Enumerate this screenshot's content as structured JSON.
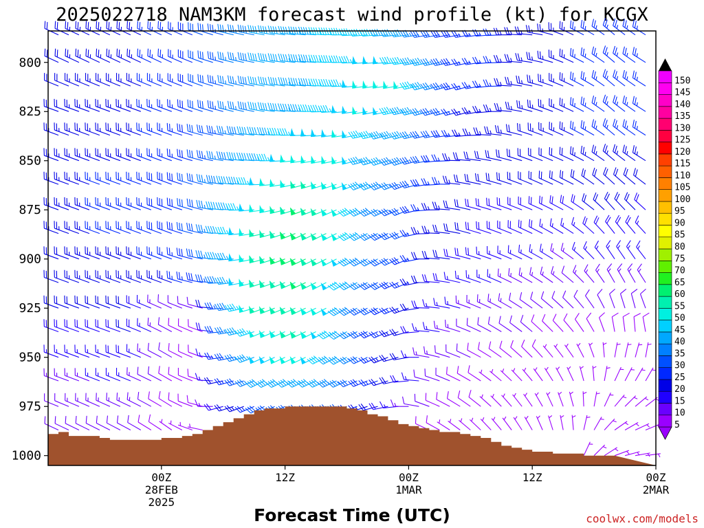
{
  "chart_data": {
    "type": "wind-barb-time-height",
    "title": "2025022718 NAM3KM forecast wind profile (kt) for KCGX",
    "xlabel": "Forecast Time (UTC)",
    "ylabel": "",
    "credit": "coolwx.com/models",
    "x_range_hours": [
      -5,
      54
    ],
    "y_range_hPa": [
      1005,
      784
    ],
    "y_ticks": [
      {
        "label": "800",
        "value": 800
      },
      {
        "label": "825",
        "value": 825
      },
      {
        "label": "850",
        "value": 850
      },
      {
        "label": "875",
        "value": 875
      },
      {
        "label": "900",
        "value": 900
      },
      {
        "label": "925",
        "value": 925
      },
      {
        "label": "950",
        "value": 950
      },
      {
        "label": "975",
        "value": 975
      },
      {
        "label": "1000",
        "value": 1000
      }
    ],
    "x_ticks": [
      {
        "hour": 6,
        "lines": [
          "00Z",
          "28FEB",
          "2025"
        ]
      },
      {
        "hour": 18,
        "lines": [
          "12Z"
        ]
      },
      {
        "hour": 30,
        "lines": [
          "00Z",
          "1MAR"
        ]
      },
      {
        "hour": 42,
        "lines": [
          "12Z"
        ]
      },
      {
        "hour": 54,
        "lines": [
          "00Z",
          "2MAR"
        ]
      }
    ],
    "time_step_hours": 1,
    "surface_pressure": {
      "hours": [
        -5,
        -4,
        -3,
        -2,
        -1,
        0,
        1,
        2,
        3,
        4,
        5,
        6,
        7,
        8,
        9,
        10,
        11,
        12,
        13,
        14,
        15,
        16,
        17,
        18,
        19,
        20,
        21,
        22,
        23,
        24,
        25,
        26,
        27,
        28,
        29,
        30,
        31,
        32,
        33,
        34,
        35,
        36,
        37,
        38,
        39,
        40,
        41,
        42,
        43,
        44,
        45,
        46,
        47,
        48,
        49
      ],
      "hPa": [
        989,
        988,
        990,
        990,
        990,
        991,
        992,
        992,
        992,
        992,
        992,
        991,
        991,
        990,
        989,
        987,
        985,
        983,
        981,
        979,
        977,
        976,
        976,
        975,
        975,
        975,
        975,
        975,
        975,
        976,
        977,
        979,
        980,
        982,
        984,
        985,
        986,
        987,
        988,
        988,
        989,
        990,
        991,
        993,
        995,
        996,
        997,
        998,
        998,
        999,
        999,
        999,
        1000,
        1000,
        1000
      ]
    },
    "colorbar": {
      "values": [
        5,
        10,
        15,
        20,
        25,
        30,
        35,
        40,
        45,
        50,
        55,
        60,
        65,
        70,
        75,
        80,
        85,
        90,
        95,
        100,
        105,
        110,
        115,
        120,
        125,
        130,
        135,
        140,
        145,
        150
      ],
      "colors": [
        "#9a00ff",
        "#6a00ff",
        "#2000ff",
        "#0000e6",
        "#0028ff",
        "#0050ff",
        "#0080ff",
        "#00a8ff",
        "#00d0ff",
        "#00f0e0",
        "#00f0b0",
        "#00f070",
        "#20f020",
        "#60f000",
        "#a0f000",
        "#e0f000",
        "#ffff00",
        "#ffe000",
        "#ffc000",
        "#ffa000",
        "#ff8000",
        "#ff6000",
        "#ff4000",
        "#ff0000",
        "#ff0040",
        "#ff0070",
        "#ff00a0",
        "#ff00c8",
        "#ff00f0",
        "#f000ff"
      ]
    },
    "wind": {
      "levels_hPa": [
        786,
        800,
        812,
        825,
        837,
        850,
        862,
        875,
        887,
        900,
        912,
        925,
        937,
        950,
        962,
        975,
        987,
        1000
      ],
      "time_anchors_hours": [
        -4,
        3,
        7,
        10,
        12,
        16,
        20,
        24,
        26,
        28,
        30,
        32,
        36,
        42,
        46,
        48,
        50,
        52,
        54
      ],
      "direction_deg": [
        [
          295,
          295,
          295,
          290,
          285,
          280,
          275,
          270,
          265,
          265,
          262,
          260,
          260,
          275,
          295,
          300,
          310,
          305,
          300
        ],
        [
          295,
          295,
          295,
          290,
          285,
          280,
          275,
          270,
          265,
          265,
          262,
          258,
          258,
          278,
          295,
          300,
          310,
          305,
          300
        ],
        [
          292,
          292,
          292,
          290,
          285,
          280,
          275,
          268,
          262,
          262,
          260,
          255,
          255,
          282,
          295,
          300,
          310,
          305,
          300
        ],
        [
          290,
          290,
          290,
          288,
          285,
          280,
          272,
          265,
          260,
          258,
          258,
          255,
          255,
          285,
          295,
          300,
          310,
          305,
          300
        ],
        [
          290,
          290,
          290,
          285,
          280,
          275,
          268,
          262,
          258,
          255,
          255,
          258,
          265,
          288,
          295,
          300,
          310,
          305,
          300
        ],
        [
          290,
          290,
          290,
          285,
          280,
          272,
          262,
          258,
          255,
          252,
          252,
          260,
          275,
          290,
          295,
          300,
          310,
          305,
          300
        ],
        [
          290,
          290,
          290,
          285,
          278,
          268,
          255,
          250,
          248,
          248,
          250,
          262,
          280,
          292,
          297,
          305,
          312,
          310,
          305
        ],
        [
          290,
          290,
          290,
          285,
          275,
          262,
          250,
          245,
          245,
          245,
          248,
          265,
          283,
          293,
          300,
          308,
          318,
          315,
          310
        ],
        [
          290,
          290,
          290,
          283,
          272,
          258,
          245,
          242,
          242,
          243,
          248,
          268,
          285,
          295,
          303,
          312,
          322,
          320,
          315
        ],
        [
          290,
          290,
          290,
          282,
          270,
          255,
          245,
          242,
          242,
          242,
          248,
          270,
          285,
          297,
          306,
          316,
          326,
          325,
          320
        ],
        [
          290,
          290,
          290,
          281,
          267,
          252,
          245,
          240,
          242,
          242,
          248,
          270,
          287,
          300,
          310,
          320,
          330,
          330,
          325
        ],
        [
          290,
          290,
          295,
          285,
          265,
          250,
          245,
          240,
          242,
          244,
          250,
          272,
          290,
          305,
          315,
          325,
          340,
          345,
          335
        ],
        [
          290,
          290,
          298,
          290,
          265,
          248,
          245,
          240,
          244,
          246,
          255,
          275,
          292,
          310,
          320,
          330,
          350,
          355,
          345
        ],
        [
          290,
          290,
          300,
          290,
          262,
          246,
          245,
          242,
          245,
          248,
          260,
          280,
          295,
          315,
          325,
          340,
          10,
          15,
          5
        ],
        [
          290,
          292,
          300,
          288,
          258,
          244,
          245,
          245,
          248,
          252,
          265,
          285,
          300,
          320,
          335,
          355,
          25,
          30,
          30
        ],
        [
          292,
          295,
          302,
          285,
          255,
          244,
          248,
          250,
          252,
          258,
          270,
          290,
          305,
          325,
          345,
          10,
          40,
          50,
          55
        ],
        [
          295,
          298,
          305,
          282,
          252,
          245,
          250,
          255,
          258,
          262,
          275,
          295,
          310,
          330,
          355,
          30,
          55,
          65,
          70
        ],
        [
          300,
          305,
          310,
          280,
          250,
          248,
          255,
          262,
          265,
          268,
          280,
          300,
          315,
          340,
          5,
          45,
          70,
          80,
          85
        ]
      ],
      "speed_kt": [
        [
          22,
          24,
          26,
          30,
          34,
          40,
          44,
          46,
          46,
          44,
          40,
          32,
          26,
          24,
          24,
          26,
          26,
          26,
          24
        ],
        [
          22,
          24,
          26,
          30,
          34,
          40,
          44,
          46,
          48,
          48,
          46,
          40,
          26,
          24,
          24,
          26,
          26,
          26,
          24
        ],
        [
          22,
          24,
          26,
          30,
          34,
          40,
          44,
          46,
          50,
          50,
          50,
          40,
          26,
          24,
          24,
          26,
          26,
          26,
          24
        ],
        [
          22,
          24,
          26,
          30,
          34,
          40,
          44,
          48,
          50,
          48,
          44,
          36,
          24,
          24,
          24,
          26,
          26,
          26,
          24
        ],
        [
          24,
          24,
          26,
          30,
          34,
          42,
          48,
          50,
          46,
          44,
          40,
          32,
          24,
          22,
          24,
          26,
          26,
          26,
          24
        ],
        [
          24,
          24,
          26,
          30,
          36,
          44,
          52,
          52,
          44,
          40,
          38,
          30,
          22,
          22,
          22,
          24,
          24,
          24,
          22
        ],
        [
          24,
          26,
          28,
          32,
          38,
          48,
          56,
          52,
          44,
          38,
          34,
          28,
          22,
          20,
          20,
          22,
          22,
          22,
          20
        ],
        [
          24,
          26,
          28,
          32,
          40,
          52,
          60,
          52,
          42,
          36,
          32,
          26,
          20,
          18,
          18,
          20,
          20,
          20,
          18
        ],
        [
          24,
          26,
          28,
          32,
          42,
          55,
          62,
          50,
          40,
          34,
          30,
          24,
          20,
          18,
          16,
          18,
          18,
          18,
          16
        ],
        [
          22,
          24,
          26,
          30,
          40,
          58,
          62,
          48,
          38,
          32,
          28,
          22,
          18,
          16,
          14,
          16,
          16,
          16,
          14
        ],
        [
          22,
          24,
          24,
          28,
          38,
          58,
          60,
          46,
          36,
          30,
          26,
          20,
          16,
          14,
          12,
          14,
          14,
          14,
          12
        ],
        [
          20,
          22,
          12,
          10,
          34,
          56,
          58,
          44,
          34,
          28,
          24,
          18,
          14,
          12,
          10,
          10,
          10,
          10,
          10
        ],
        [
          18,
          20,
          10,
          8,
          30,
          52,
          56,
          42,
          32,
          26,
          22,
          16,
          12,
          10,
          8,
          8,
          8,
          8,
          8
        ],
        [
          16,
          18,
          10,
          8,
          26,
          48,
          52,
          40,
          30,
          24,
          20,
          14,
          10,
          8,
          6,
          6,
          6,
          6,
          6
        ],
        [
          14,
          16,
          8,
          8,
          22,
          40,
          44,
          36,
          28,
          22,
          18,
          12,
          8,
          6,
          6,
          6,
          6,
          6,
          6
        ],
        [
          12,
          14,
          8,
          8,
          18,
          30,
          34,
          30,
          24,
          18,
          14,
          10,
          8,
          6,
          6,
          6,
          6,
          6,
          6
        ],
        [
          10,
          12,
          6,
          6,
          14,
          22,
          26,
          24,
          20,
          16,
          12,
          8,
          6,
          6,
          6,
          6,
          6,
          6,
          6
        ],
        [
          8,
          10,
          6,
          6,
          10,
          16,
          18,
          18,
          16,
          12,
          10,
          6,
          6,
          6,
          6,
          6,
          6,
          6,
          6
        ]
      ]
    }
  }
}
